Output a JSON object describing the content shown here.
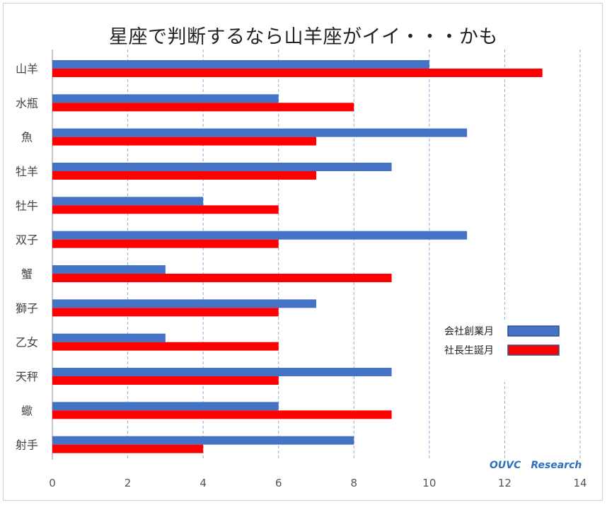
{
  "chart_data": {
    "type": "bar",
    "orientation": "horizontal",
    "title": "星座で判断するなら山羊座がイイ・・・かも",
    "categories": [
      "山羊",
      "水瓶",
      "魚",
      "牡羊",
      "牡牛",
      "双子",
      "蟹",
      "獅子",
      "乙女",
      "天秤",
      "蠍",
      "射手"
    ],
    "series": [
      {
        "name": "会社創業月",
        "color": "#4472c4",
        "values": [
          10,
          6,
          11,
          9,
          4,
          11,
          3,
          7,
          3,
          9,
          6,
          8
        ]
      },
      {
        "name": "社長生誕月",
        "color": "#ff0000",
        "values": [
          13,
          8,
          7,
          7,
          6,
          6,
          9,
          6,
          6,
          6,
          9,
          4
        ]
      }
    ],
    "xlim": [
      0,
      14
    ],
    "xticks": [
      0,
      2,
      4,
      6,
      8,
      10,
      12,
      14
    ],
    "grid": "vertical-dashed",
    "legend_position": "right",
    "watermark": "OUVC　Research"
  }
}
